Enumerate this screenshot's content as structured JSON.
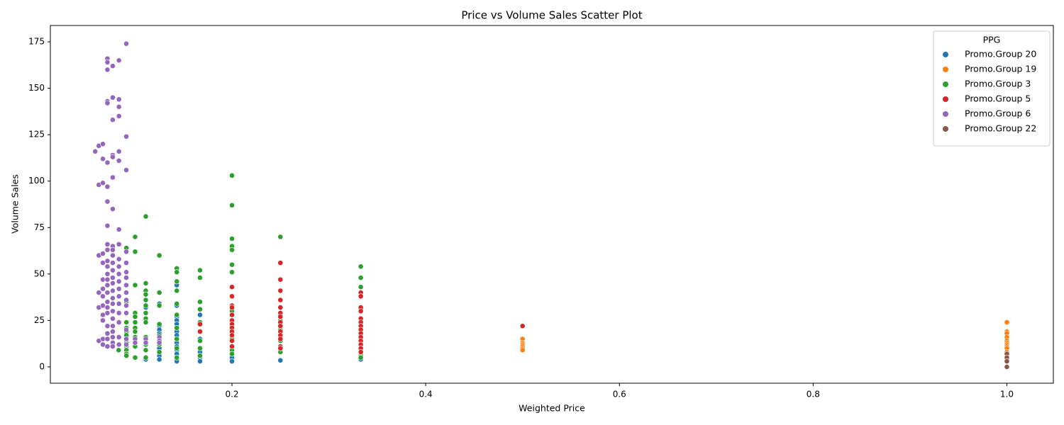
{
  "chart_data": {
    "type": "scatter",
    "title": "Price vs Volume Sales Scatter Plot",
    "x_label": "Weighted Price",
    "y_label": "Volume Sales",
    "legend_title": "PPG",
    "legend": "upper right",
    "xlim": [
      0.0125,
      1.048
    ],
    "ylim": [
      -8.8,
      183.8
    ],
    "xticks": [
      0.2,
      0.4,
      0.6,
      0.8,
      {
        "value": 1.0,
        "label": "1.0"
      }
    ],
    "yticks": [
      0,
      25,
      50,
      75,
      100,
      125,
      150,
      175
    ],
    "series": [
      {
        "name": "Promo.Group 20",
        "color": "#1f77b4",
        "x": [
          0.111,
          0.111,
          0.111,
          0.111,
          0.125,
          0.125,
          0.125,
          0.125,
          0.125,
          0.125,
          0.125,
          0.125,
          0.125,
          0.125,
          0.125,
          0.143,
          0.143,
          0.143,
          0.143,
          0.143,
          0.143,
          0.143,
          0.143,
          0.143,
          0.143,
          0.143,
          0.143,
          0.143,
          0.143,
          0.143,
          0.167,
          0.167,
          0.167,
          0.167,
          0.167,
          0.167,
          0.2,
          0.2,
          0.2,
          0.25,
          0.333
        ],
        "values": [
          32,
          4,
          12,
          15,
          34,
          22,
          20,
          18,
          16,
          14,
          12,
          10,
          8,
          6,
          4,
          44,
          33,
          27,
          25,
          23,
          21,
          19,
          17,
          15,
          13,
          11,
          9,
          7,
          5,
          3,
          28,
          15,
          14,
          8,
          5,
          3,
          11,
          5,
          3,
          3.5,
          4
        ]
      },
      {
        "name": "Promo.Group 19",
        "color": "#ff7f0e",
        "x": [
          0.5,
          0.5,
          0.5,
          0.5,
          0.5,
          0.5,
          1,
          1,
          1,
          1,
          1,
          1,
          1,
          1,
          1,
          1,
          1,
          1,
          1
        ],
        "values": [
          15,
          13,
          12,
          11,
          10,
          9,
          24,
          19,
          18,
          16,
          14,
          13,
          12,
          11,
          10,
          8,
          6,
          4,
          3
        ]
      },
      {
        "name": "Promo.Group 3",
        "color": "#2ca02c",
        "x": [
          0.083,
          0.091,
          0.091,
          0.091,
          0.091,
          0.091,
          0.091,
          0.091,
          0.091,
          0.091,
          0.091,
          0.091,
          0.091,
          0.1,
          0.1,
          0.1,
          0.1,
          0.1,
          0.1,
          0.1,
          0.1,
          0.1,
          0.1,
          0.1,
          0.1,
          0.111,
          0.111,
          0.111,
          0.111,
          0.111,
          0.111,
          0.111,
          0.111,
          0.111,
          0.111,
          0.111,
          0.111,
          0.111,
          0.125,
          0.125,
          0.125,
          0.125,
          0.125,
          0.125,
          0.125,
          0.143,
          0.143,
          0.143,
          0.143,
          0.143,
          0.143,
          0.143,
          0.143,
          0.143,
          0.143,
          0.167,
          0.167,
          0.167,
          0.167,
          0.167,
          0.167,
          0.167,
          0.167,
          0.167,
          0.2,
          0.2,
          0.2,
          0.2,
          0.2,
          0.2,
          0.2,
          0.2,
          0.2,
          0.2,
          0.2,
          0.2,
          0.2,
          0.2,
          0.2,
          0.25,
          0.25,
          0.25,
          0.25,
          0.25,
          0.25,
          0.25,
          0.25,
          0.333,
          0.333,
          0.333,
          0.333,
          0.333,
          0.333,
          0.333
        ],
        "values": [
          9,
          64,
          35,
          24,
          21,
          19,
          17,
          15,
          13,
          11,
          9,
          7,
          6,
          70,
          62,
          44,
          29,
          27,
          24,
          21,
          19,
          16,
          13,
          11,
          5,
          81,
          45,
          41,
          39,
          36,
          33,
          29,
          26,
          24,
          16,
          12,
          9,
          5,
          60,
          40,
          33,
          23,
          17,
          12,
          8,
          53,
          51,
          46,
          41,
          34,
          28,
          21,
          15,
          10,
          5,
          52,
          48,
          35,
          31,
          24,
          19,
          14,
          10,
          6,
          103,
          87,
          69,
          65,
          63,
          55,
          51,
          30,
          28,
          25,
          20,
          15,
          11,
          9,
          7,
          70,
          25,
          22,
          20,
          14,
          11,
          9,
          8,
          54,
          48,
          43,
          10,
          8,
          6,
          5
        ]
      },
      {
        "name": "Promo.Group 5",
        "color": "#d62728",
        "x": [
          0.167,
          0.167,
          0.2,
          0.2,
          0.2,
          0.2,
          0.2,
          0.2,
          0.2,
          0.2,
          0.2,
          0.2,
          0.2,
          0.2,
          0.25,
          0.25,
          0.25,
          0.25,
          0.25,
          0.25,
          0.25,
          0.25,
          0.25,
          0.25,
          0.25,
          0.25,
          0.25,
          0.25,
          0.333,
          0.333,
          0.333,
          0.333,
          0.333,
          0.333,
          0.333,
          0.333,
          0.333,
          0.333,
          0.333,
          0.333,
          0.333,
          0.333,
          0.5
        ],
        "values": [
          23,
          19,
          43,
          38,
          33,
          32,
          28,
          25,
          23,
          21,
          19,
          17,
          14,
          11,
          56,
          47,
          41,
          36,
          32,
          29,
          27,
          24,
          22,
          19,
          17,
          15,
          11,
          10,
          40,
          38,
          32,
          30,
          26,
          24,
          22,
          20,
          18,
          16,
          14,
          12,
          10,
          8,
          22
        ]
      },
      {
        "name": "Promo.Group 6",
        "color": "#9467bd",
        "x": [
          0.0588,
          0.0625,
          0.0625,
          0.0625,
          0.0625,
          0.0625,
          0.0625,
          0.0667,
          0.0667,
          0.0667,
          0.0667,
          0.0667,
          0.0667,
          0.0667,
          0.0667,
          0.0667,
          0.0667,
          0.0667,
          0.0667,
          0.0667,
          0.0714,
          0.0714,
          0.0714,
          0.0714,
          0.0714,
          0.0714,
          0.0714,
          0.0714,
          0.0714,
          0.0714,
          0.0714,
          0.0714,
          0.0714,
          0.0714,
          0.0714,
          0.0714,
          0.0714,
          0.0714,
          0.0714,
          0.0714,
          0.0714,
          0.0714,
          0.0714,
          0.0714,
          0.0769,
          0.0769,
          0.0769,
          0.0769,
          0.0769,
          0.0769,
          0.0769,
          0.0769,
          0.0769,
          0.0769,
          0.0769,
          0.0769,
          0.0769,
          0.0769,
          0.0769,
          0.0769,
          0.0769,
          0.0769,
          0.0769,
          0.0769,
          0.0769,
          0.0769,
          0.0769,
          0.0769,
          0.0833,
          0.0833,
          0.0833,
          0.0833,
          0.0833,
          0.0833,
          0.0833,
          0.0833,
          0.0833,
          0.0833,
          0.0833,
          0.0833,
          0.0833,
          0.0833,
          0.0833,
          0.0833,
          0.0833,
          0.0833,
          0.0833,
          0.0909,
          0.0909,
          0.0909,
          0.0909,
          0.0909,
          0.0909,
          0.0909,
          0.0909,
          0.0909,
          0.0909,
          0.0909,
          0.0909,
          0.0909,
          0.0909,
          0.0909,
          0.1,
          0.1,
          0.111,
          0.111,
          0.125,
          0.125,
          0.125
        ],
        "values": [
          116,
          119,
          98,
          60,
          40,
          32,
          14,
          120,
          112,
          99,
          61,
          56,
          47,
          42,
          38,
          33,
          28,
          25,
          15,
          12,
          166,
          164,
          160,
          143,
          142,
          110,
          97,
          89,
          76,
          66,
          63,
          57,
          54,
          50,
          47,
          44,
          40,
          35,
          32,
          29,
          22,
          18,
          15,
          11,
          162,
          145,
          133,
          114,
          113,
          102,
          85,
          65,
          63,
          60,
          56,
          52,
          48,
          45,
          41,
          37,
          34,
          30,
          26,
          22,
          19,
          16,
          13,
          11,
          165,
          144,
          140,
          135,
          116,
          111,
          74,
          66,
          58,
          54,
          50,
          46,
          42,
          38,
          34,
          29,
          24,
          16,
          12,
          174,
          124,
          106,
          62,
          56,
          51,
          48,
          44,
          40,
          36,
          33,
          29,
          20,
          15,
          12,
          15,
          13,
          15,
          13,
          16,
          14,
          13
        ]
      },
      {
        "name": "Promo.Group 22",
        "color": "#8c564b",
        "x": [
          1,
          1,
          1,
          1
        ],
        "values": [
          7,
          5,
          3,
          0
        ]
      }
    ]
  }
}
